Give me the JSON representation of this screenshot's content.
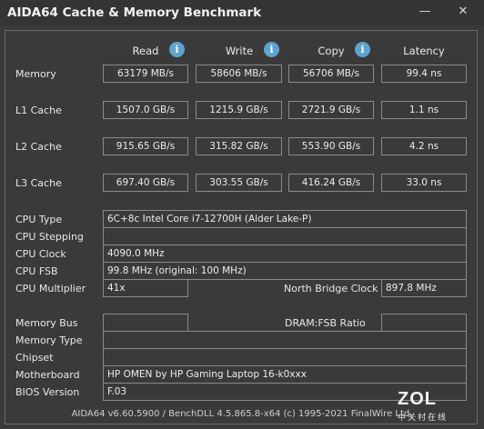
{
  "window": {
    "title": "AIDA64 Cache & Memory Benchmark",
    "minimize_label": "—",
    "close_label": "✕"
  },
  "columns": {
    "read": "Read",
    "write": "Write",
    "copy": "Copy",
    "latency": "Latency",
    "info_glyph": "i"
  },
  "rows": [
    {
      "label": "Memory",
      "read": "63179 MB/s",
      "write": "58606 MB/s",
      "copy": "56706 MB/s",
      "latency": "99.4 ns"
    },
    {
      "label": "L1 Cache",
      "read": "1507.0 GB/s",
      "write": "1215.9 GB/s",
      "copy": "2721.9 GB/s",
      "latency": "1.1 ns"
    },
    {
      "label": "L2 Cache",
      "read": "915.65 GB/s",
      "write": "315.82 GB/s",
      "copy": "553.90 GB/s",
      "latency": "4.2 ns"
    },
    {
      "label": "L3 Cache",
      "read": "697.40 GB/s",
      "write": "303.55 GB/s",
      "copy": "416.24 GB/s",
      "latency": "33.0 ns"
    }
  ],
  "cpu": {
    "type_label": "CPU Type",
    "type_value": "6C+8c Intel Core i7-12700H  (Alder Lake-P)",
    "stepping_label": "CPU Stepping",
    "stepping_value": "",
    "clock_label": "CPU Clock",
    "clock_value": "4090.0 MHz",
    "fsb_label": "CPU FSB",
    "fsb_value": "99.8 MHz  (original: 100 MHz)",
    "multiplier_label": "CPU Multiplier",
    "multiplier_value": "41x",
    "nb_clock_label": "North Bridge Clock",
    "nb_clock_value": "897.8 MHz"
  },
  "memory_info": {
    "bus_label": "Memory Bus",
    "bus_value": "",
    "dram_fsb_label": "DRAM:FSB Ratio",
    "dram_fsb_value": "",
    "type_label": "Memory Type",
    "type_value": "",
    "chipset_label": "Chipset",
    "chipset_value": "",
    "motherboard_label": "Motherboard",
    "motherboard_value": "HP OMEN by HP Gaming Laptop 16-k0xxx",
    "bios_label": "BIOS Version",
    "bios_value": "F.03"
  },
  "footer": "AIDA64 v6.60.5900 / BenchDLL 4.5.865.8-x64  (c) 1995-2021 FinalWire Ltd.",
  "watermark": {
    "logo": "ZOL",
    "sub": "中关村在线"
  }
}
